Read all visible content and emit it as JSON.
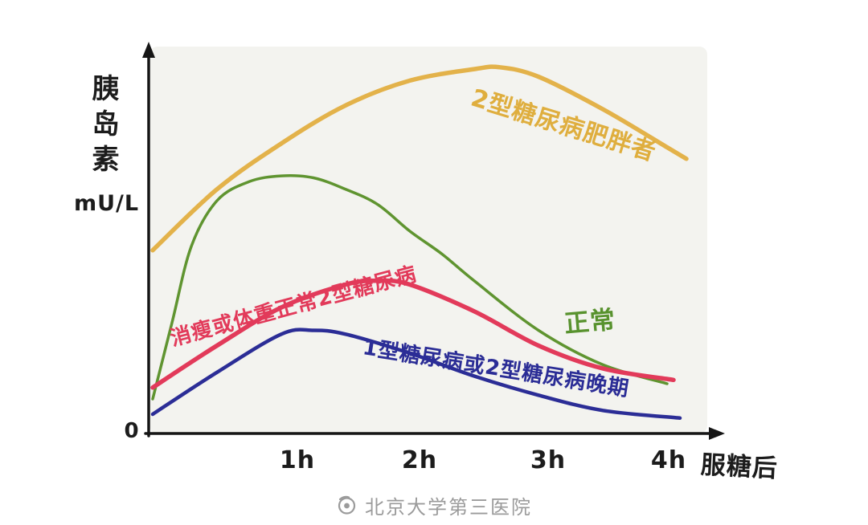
{
  "chart_data": {
    "type": "line",
    "title": "",
    "ylabel": "胰岛素",
    "ylabel_unit": "mU/L",
    "xlabel": "服糖后",
    "origin_label": "0",
    "x_ticks": [
      "1h",
      "2h",
      "3h",
      "4h"
    ],
    "x_unit": "h",
    "xlim": [
      0,
      4.3
    ],
    "ylim": [
      0,
      100
    ],
    "grid": false,
    "legend_position": "labels-on-curves",
    "series": [
      {
        "id": "t2dm-obese",
        "name": "2型糖尿病肥胖者",
        "color": "#e3b24a",
        "width": 5.5,
        "x": [
          0,
          0.5,
          1,
          1.5,
          2,
          2.5,
          2.7,
          3,
          3.5,
          4,
          4.15
        ],
        "values": [
          47,
          63,
          75,
          85,
          91.5,
          94.5,
          95,
          92.5,
          84,
          74,
          71
        ]
      },
      {
        "id": "normal",
        "name": "正常",
        "color": "#5f9430",
        "width": 3.5,
        "x": [
          0,
          0.15,
          0.3,
          0.5,
          0.75,
          1,
          1.25,
          1.5,
          1.75,
          2,
          2.25,
          2.5,
          3,
          3.5,
          4
        ],
        "values": [
          8,
          28,
          48,
          60,
          65,
          66.5,
          66,
          63,
          59,
          52,
          46,
          39,
          26,
          17,
          12
        ]
      },
      {
        "id": "t2dm-lean",
        "name": "消瘦或体重正常2型糖尿病",
        "color": "#e23a5a",
        "width": 5.5,
        "x": [
          0,
          0.5,
          1,
          1.5,
          1.75,
          2,
          2.5,
          3,
          3.5,
          4.05
        ],
        "values": [
          11,
          22,
          32,
          38,
          39,
          38,
          31,
          22,
          16,
          13
        ]
      },
      {
        "id": "t1dm-late",
        "name": "1型糖尿病或2型糖尿病晚期",
        "color": "#2b2d96",
        "width": 4.5,
        "x": [
          0,
          0.5,
          1,
          1.25,
          1.5,
          2,
          2.5,
          3,
          3.5,
          4.1
        ],
        "values": [
          4,
          15,
          25,
          26,
          25,
          20,
          14,
          9,
          5,
          3
        ]
      }
    ]
  },
  "watermark": {
    "icon": "hospital-eye-logo-icon",
    "text": "北京大学第三医院"
  }
}
